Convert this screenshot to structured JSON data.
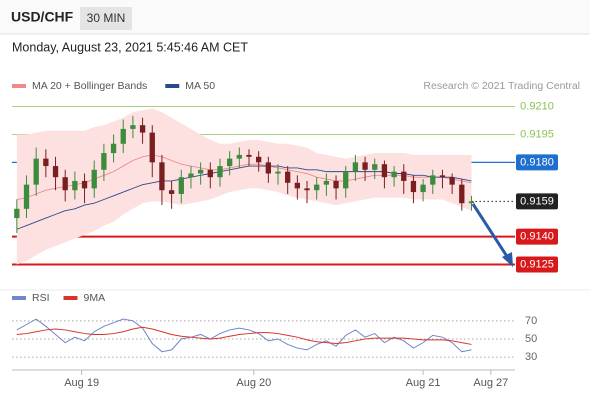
{
  "header": {
    "symbol": "USD/CHF",
    "timeframe": "30 MIN",
    "datetime": "Monday, August 23, 2021 5:45:46 AM CET",
    "credit": "Research © 2021 Trading Central"
  },
  "chart_data": [
    {
      "type": "candlestick",
      "up_color": "#3d8b3d",
      "down_color": "#7a1f1f",
      "x": [
        0,
        1,
        2,
        3,
        4,
        5,
        6,
        7,
        8,
        9,
        10,
        11,
        12,
        13,
        14,
        15,
        16,
        17,
        18,
        19,
        20,
        21,
        22,
        23,
        24,
        25,
        26,
        27,
        28,
        29,
        30,
        31,
        32,
        33,
        34,
        35,
        36,
        37,
        38,
        39,
        40,
        41,
        42,
        43,
        44,
        45,
        46,
        47
      ],
      "xlim": [
        -0.5,
        51.5
      ],
      "ylim": [
        0.9114,
        0.9227
      ],
      "open": [
        0.915,
        0.9155,
        0.9168,
        0.9182,
        0.9178,
        0.9172,
        0.9165,
        0.917,
        0.9166,
        0.9176,
        0.9185,
        0.919,
        0.9198,
        0.92,
        0.9196,
        0.918,
        0.9165,
        0.9163,
        0.9172,
        0.9174,
        0.9176,
        0.9172,
        0.9178,
        0.9182,
        0.9184,
        0.9183,
        0.918,
        0.9174,
        0.9175,
        0.9169,
        0.9166,
        0.9165,
        0.9168,
        0.917,
        0.9166,
        0.9175,
        0.918,
        0.9176,
        0.9179,
        0.9172,
        0.9175,
        0.917,
        0.9164,
        0.9168,
        0.9173,
        0.9172,
        0.9168,
        0.9158
      ],
      "high": [
        0.916,
        0.9173,
        0.9188,
        0.9187,
        0.9183,
        0.9176,
        0.9175,
        0.9174,
        0.9181,
        0.919,
        0.9195,
        0.9203,
        0.9205,
        0.9204,
        0.92,
        0.9184,
        0.917,
        0.9176,
        0.9178,
        0.918,
        0.918,
        0.9182,
        0.9186,
        0.9188,
        0.9187,
        0.9186,
        0.9183,
        0.9179,
        0.9178,
        0.9173,
        0.917,
        0.9172,
        0.9174,
        0.9173,
        0.9178,
        0.9184,
        0.9183,
        0.9182,
        0.9181,
        0.9178,
        0.9179,
        0.9173,
        0.9171,
        0.9176,
        0.9176,
        0.9174,
        0.9171,
        0.9162
      ],
      "low": [
        0.9142,
        0.915,
        0.9162,
        0.9172,
        0.9165,
        0.9159,
        0.916,
        0.9158,
        0.9161,
        0.917,
        0.918,
        0.9185,
        0.9193,
        0.919,
        0.9172,
        0.9157,
        0.9155,
        0.9158,
        0.9166,
        0.9168,
        0.9166,
        0.9167,
        0.9173,
        0.9177,
        0.9178,
        0.9175,
        0.9169,
        0.9168,
        0.9163,
        0.916,
        0.9158,
        0.916,
        0.9162,
        0.916,
        0.9161,
        0.917,
        0.917,
        0.9171,
        0.9166,
        0.9167,
        0.9163,
        0.9158,
        0.9159,
        0.9163,
        0.9166,
        0.9163,
        0.9154,
        0.9154
      ],
      "close": [
        0.9155,
        0.9168,
        0.9182,
        0.9178,
        0.9172,
        0.9165,
        0.917,
        0.9166,
        0.9176,
        0.9185,
        0.919,
        0.9198,
        0.92,
        0.9196,
        0.918,
        0.9165,
        0.9163,
        0.9172,
        0.9174,
        0.9176,
        0.9172,
        0.9178,
        0.9182,
        0.9184,
        0.9183,
        0.918,
        0.9174,
        0.9175,
        0.9169,
        0.9166,
        0.9165,
        0.9168,
        0.917,
        0.9166,
        0.9175,
        0.918,
        0.9176,
        0.9179,
        0.9172,
        0.9175,
        0.917,
        0.9164,
        0.9168,
        0.9173,
        0.9172,
        0.9168,
        0.9158,
        0.9159
      ],
      "series": [
        {
          "name": "MA 20 + Bollinger Bands",
          "color": "#f08a8a",
          "band_color": "#fde1e1",
          "values": [
            0.916,
            0.9161,
            0.9163,
            0.9165,
            0.9166,
            0.9167,
            0.9168,
            0.9169,
            0.9171,
            0.9173,
            0.9175,
            0.9178,
            0.9181,
            0.9183,
            0.9184,
            0.9183,
            0.9181,
            0.9179,
            0.9178,
            0.9177,
            0.9176,
            0.9176,
            0.9177,
            0.9178,
            0.9179,
            0.9179,
            0.9178,
            0.9177,
            0.9176,
            0.9175,
            0.9174,
            0.9172,
            0.9171,
            0.917,
            0.917,
            0.9171,
            0.9172,
            0.9173,
            0.9173,
            0.9173,
            0.9173,
            0.9172,
            0.9172,
            0.9172,
            0.9172,
            0.9171,
            0.917,
            0.9169
          ],
          "upper": [
            0.9195,
            0.9195,
            0.9196,
            0.9197,
            0.9197,
            0.9197,
            0.9197,
            0.9197,
            0.9199,
            0.92,
            0.9202,
            0.9204,
            0.9207,
            0.9208,
            0.9209,
            0.9207,
            0.9204,
            0.9201,
            0.9198,
            0.9195,
            0.9192,
            0.919,
            0.919,
            0.9191,
            0.9192,
            0.9192,
            0.9191,
            0.919,
            0.919,
            0.9189,
            0.9188,
            0.9185,
            0.9184,
            0.9183,
            0.9182,
            0.9183,
            0.9184,
            0.9185,
            0.9185,
            0.9185,
            0.9185,
            0.9184,
            0.9184,
            0.9184,
            0.9184,
            0.9184,
            0.9184,
            0.9184
          ],
          "lower": [
            0.9125,
            0.9127,
            0.913,
            0.9133,
            0.9135,
            0.9137,
            0.9139,
            0.9141,
            0.9143,
            0.9146,
            0.9148,
            0.9152,
            0.9155,
            0.9158,
            0.9159,
            0.9159,
            0.9158,
            0.9157,
            0.9158,
            0.9159,
            0.916,
            0.9162,
            0.9164,
            0.9165,
            0.9166,
            0.9166,
            0.9165,
            0.9164,
            0.9162,
            0.9161,
            0.916,
            0.9159,
            0.9158,
            0.9157,
            0.9158,
            0.9159,
            0.916,
            0.9161,
            0.9161,
            0.9161,
            0.9161,
            0.916,
            0.916,
            0.916,
            0.916,
            0.9158,
            0.9156,
            0.9154
          ]
        },
        {
          "name": "MA 50",
          "color": "#2b4a8a",
          "values": [
            0.9144,
            0.9146,
            0.9148,
            0.915,
            0.9152,
            0.9154,
            0.9155,
            0.9157,
            0.9158,
            0.916,
            0.9162,
            0.9164,
            0.9166,
            0.9168,
            0.9169,
            0.917,
            0.917,
            0.9171,
            0.9172,
            0.9173,
            0.9174,
            0.9175,
            0.9176,
            0.9177,
            0.9178,
            0.9178,
            0.9178,
            0.9178,
            0.9177,
            0.9177,
            0.9176,
            0.9176,
            0.9175,
            0.9175,
            0.9175,
            0.9175,
            0.9175,
            0.9175,
            0.9175,
            0.9174,
            0.9174,
            0.9173,
            0.9173,
            0.9172,
            0.9172,
            0.9172,
            0.9171,
            0.917
          ]
        }
      ],
      "levels": [
        {
          "value": 0.921,
          "label": "0.9210",
          "color": "#8cc152",
          "style": "thin",
          "boxed": false
        },
        {
          "value": 0.9195,
          "label": "0.9195",
          "color": "#8cc152",
          "style": "thin",
          "boxed": false
        },
        {
          "value": 0.918,
          "label": "0.9180",
          "color": "#1f6fd1",
          "style": "normal",
          "boxed": true
        },
        {
          "value": 0.9159,
          "label": "0.9159",
          "color": "#222222",
          "style": "dotted",
          "boxed": true
        },
        {
          "value": 0.914,
          "label": "0.9140",
          "color": "#d7191c",
          "style": "strong",
          "boxed": true
        },
        {
          "value": 0.9125,
          "label": "0.9125",
          "color": "#d7191c",
          "style": "strong",
          "boxed": true
        }
      ]
    },
    {
      "type": "line",
      "x": [
        0,
        1,
        2,
        3,
        4,
        5,
        6,
        7,
        8,
        9,
        10,
        11,
        12,
        13,
        14,
        15,
        16,
        17,
        18,
        19,
        20,
        21,
        22,
        23,
        24,
        25,
        26,
        27,
        28,
        29,
        30,
        31,
        32,
        33,
        34,
        35,
        36,
        37,
        38,
        39,
        40,
        41,
        42,
        43,
        44,
        45,
        46,
        47
      ],
      "xlim": [
        -0.5,
        51.5
      ],
      "ylim": [
        18,
        82
      ],
      "yticks": [
        70,
        50,
        30
      ],
      "xticks": [
        {
          "value": 6.7,
          "label": "Aug 19"
        },
        {
          "value": 24.5,
          "label": "Aug 20"
        },
        {
          "value": 42,
          "label": "Aug 21"
        },
        {
          "value": 49,
          "label": "Aug 27"
        }
      ],
      "series": [
        {
          "name": "RSI",
          "color": "#6f86c8",
          "values": [
            60,
            66,
            72,
            64,
            55,
            46,
            52,
            48,
            58,
            64,
            68,
            72,
            70,
            62,
            45,
            36,
            38,
            50,
            52,
            55,
            50,
            56,
            60,
            62,
            60,
            56,
            48,
            50,
            44,
            40,
            38,
            44,
            48,
            42,
            54,
            60,
            52,
            56,
            46,
            52,
            48,
            40,
            46,
            54,
            52,
            46,
            36,
            38
          ]
        },
        {
          "name": "9MA",
          "color": "#d9342b",
          "values": [
            55,
            56,
            58,
            60,
            61,
            60,
            58,
            56,
            55,
            55,
            56,
            58,
            61,
            63,
            61,
            58,
            55,
            53,
            52,
            51,
            50,
            51,
            53,
            55,
            56,
            57,
            57,
            56,
            54,
            52,
            49,
            47,
            46,
            45,
            46,
            48,
            50,
            51,
            51,
            51,
            51,
            50,
            49,
            49,
            49,
            48,
            46,
            44
          ]
        }
      ]
    }
  ]
}
